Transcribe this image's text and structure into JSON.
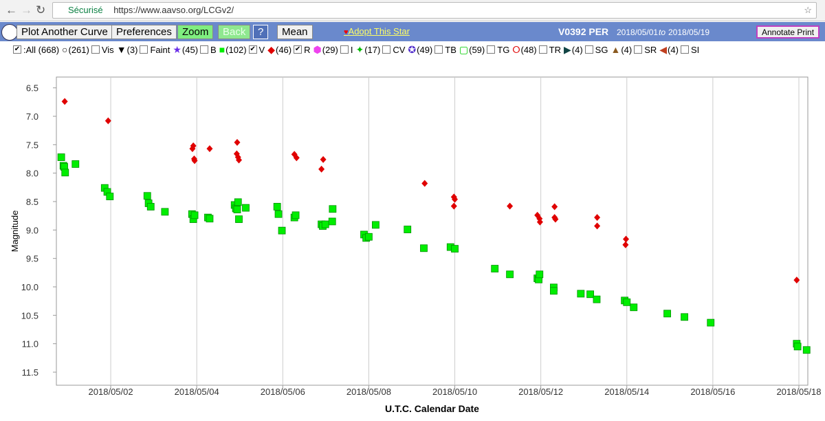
{
  "browser": {
    "secure": "Sécurisé",
    "url": "https://www.aavso.org/LCGv2/"
  },
  "toolbar": {
    "buttons": [
      "Plot Another Curve",
      "Preferences",
      "Zoom",
      "Back",
      "?",
      "Mean"
    ],
    "adopt": "Adopt This Star",
    "star": "V0392 PER",
    "date_from": "2018/05/01",
    "to": "to",
    "date_to": "2018/05/19",
    "annotate": "Annotate Print"
  },
  "filters": [
    {
      "count": ":All (668)"
    },
    {
      "count": "(261)",
      "label": "Vis"
    },
    {
      "count": "(3)",
      "label": "Faint"
    },
    {
      "count": "(45)",
      "label": "B"
    },
    {
      "count": "(102)"
    },
    {
      "count": "(46)"
    },
    {
      "count": "(29)",
      "label": "I"
    },
    {
      "count": "(17)",
      "label": "CV"
    },
    {
      "count": "(49)",
      "label": "TB"
    },
    {
      "count": "(59)",
      "label": "TG"
    },
    {
      "count": "(48)",
      "label": "TR"
    },
    {
      "count": "(4)",
      "label": "SG"
    },
    {
      "count": "(4)",
      "label": "SR"
    },
    {
      "count": "(4)",
      "label": "SI"
    }
  ],
  "chart_data": {
    "type": "scatter",
    "xlabel": "U.T.C. Calendar Date",
    "ylabel": "Magnitude",
    "xlim": [
      0.736,
      18.208
    ],
    "ylim": [
      6.31,
      11.73
    ],
    "y_inverted": true,
    "xgrid": true,
    "ygrid": false,
    "xticks": [
      {
        "value": 2,
        "label": "2018/05/02"
      },
      {
        "value": 4,
        "label": "2018/05/04"
      },
      {
        "value": 6,
        "label": "2018/05/06"
      },
      {
        "value": 8,
        "label": "2018/05/08"
      },
      {
        "value": 10,
        "label": "2018/05/10"
      },
      {
        "value": 12,
        "label": "2018/05/12"
      },
      {
        "value": 14,
        "label": "2018/05/14"
      },
      {
        "value": 16,
        "label": "2018/05/16"
      },
      {
        "value": 18,
        "label": "2018/05/18"
      }
    ],
    "yticks": [
      6.5,
      {
        "value": 7,
        "label": "7.0"
      },
      7.5,
      {
        "value": 8,
        "label": "8.0"
      },
      8.5,
      {
        "value": 9,
        "label": "9.0"
      },
      9.5,
      {
        "value": 10,
        "label": "10.0"
      },
      10.5,
      {
        "value": 11,
        "label": "11.0"
      },
      11.5
    ],
    "series": [
      {
        "name": "V",
        "color": "#00ee00",
        "marker": "square",
        "x": [
          0.85,
          0.9,
          0.92,
          0.94,
          1.18,
          1.86,
          1.92,
          1.98,
          2.85,
          2.88,
          2.93,
          3.26,
          3.89,
          3.92,
          3.95,
          4.26,
          4.3,
          4.88,
          4.91,
          4.94,
          4.96,
          4.98,
          5.14,
          5.87,
          5.9,
          5.98,
          6.27,
          6.3,
          6.9,
          6.93,
          6.99,
          7.15,
          7.16,
          7.89,
          7.94,
          8.0,
          8.16,
          8.9,
          9.28,
          9.9,
          10.0,
          10.93,
          11.28,
          11.92,
          11.95,
          11.97,
          12.3,
          12.3,
          12.93,
          13.15,
          13.3,
          13.95,
          14.0,
          14.16,
          14.94,
          15.34,
          15.95,
          17.95,
          17.97,
          18.18
        ],
        "values": [
          7.72,
          7.87,
          7.89,
          7.99,
          7.84,
          8.26,
          8.33,
          8.41,
          8.4,
          8.53,
          8.59,
          8.68,
          8.72,
          8.81,
          8.74,
          8.78,
          8.8,
          8.56,
          8.62,
          8.64,
          8.51,
          8.81,
          8.61,
          8.59,
          8.72,
          9.01,
          8.78,
          8.74,
          8.9,
          8.93,
          8.9,
          8.85,
          8.63,
          9.08,
          9.14,
          9.12,
          8.91,
          8.99,
          9.32,
          9.3,
          9.33,
          9.68,
          9.78,
          9.85,
          9.87,
          9.78,
          10.01,
          10.07,
          10.12,
          10.13,
          10.22,
          10.24,
          10.27,
          10.36,
          10.47,
          10.53,
          10.63,
          11.0,
          11.05,
          11.11
        ]
      },
      {
        "name": "R",
        "color": "#e00000",
        "marker": "diamond",
        "x": [
          0.93,
          1.94,
          3.92,
          3.9,
          3.94,
          3.95,
          4.3,
          4.94,
          4.93,
          4.96,
          4.98,
          6.27,
          6.32,
          6.94,
          6.9,
          9.3,
          9.98,
          10.0,
          9.98,
          11.28,
          11.92,
          11.97,
          11.98,
          12.32,
          12.32,
          12.34,
          13.31,
          13.31,
          13.98,
          13.97,
          17.95
        ],
        "values": [
          6.74,
          7.08,
          7.52,
          7.57,
          7.75,
          7.78,
          7.57,
          7.46,
          7.66,
          7.72,
          7.77,
          7.67,
          7.73,
          7.76,
          7.93,
          8.18,
          8.42,
          8.46,
          8.58,
          8.58,
          8.74,
          8.8,
          8.86,
          8.59,
          8.78,
          8.81,
          8.78,
          8.93,
          9.16,
          9.26,
          9.88
        ]
      }
    ]
  }
}
